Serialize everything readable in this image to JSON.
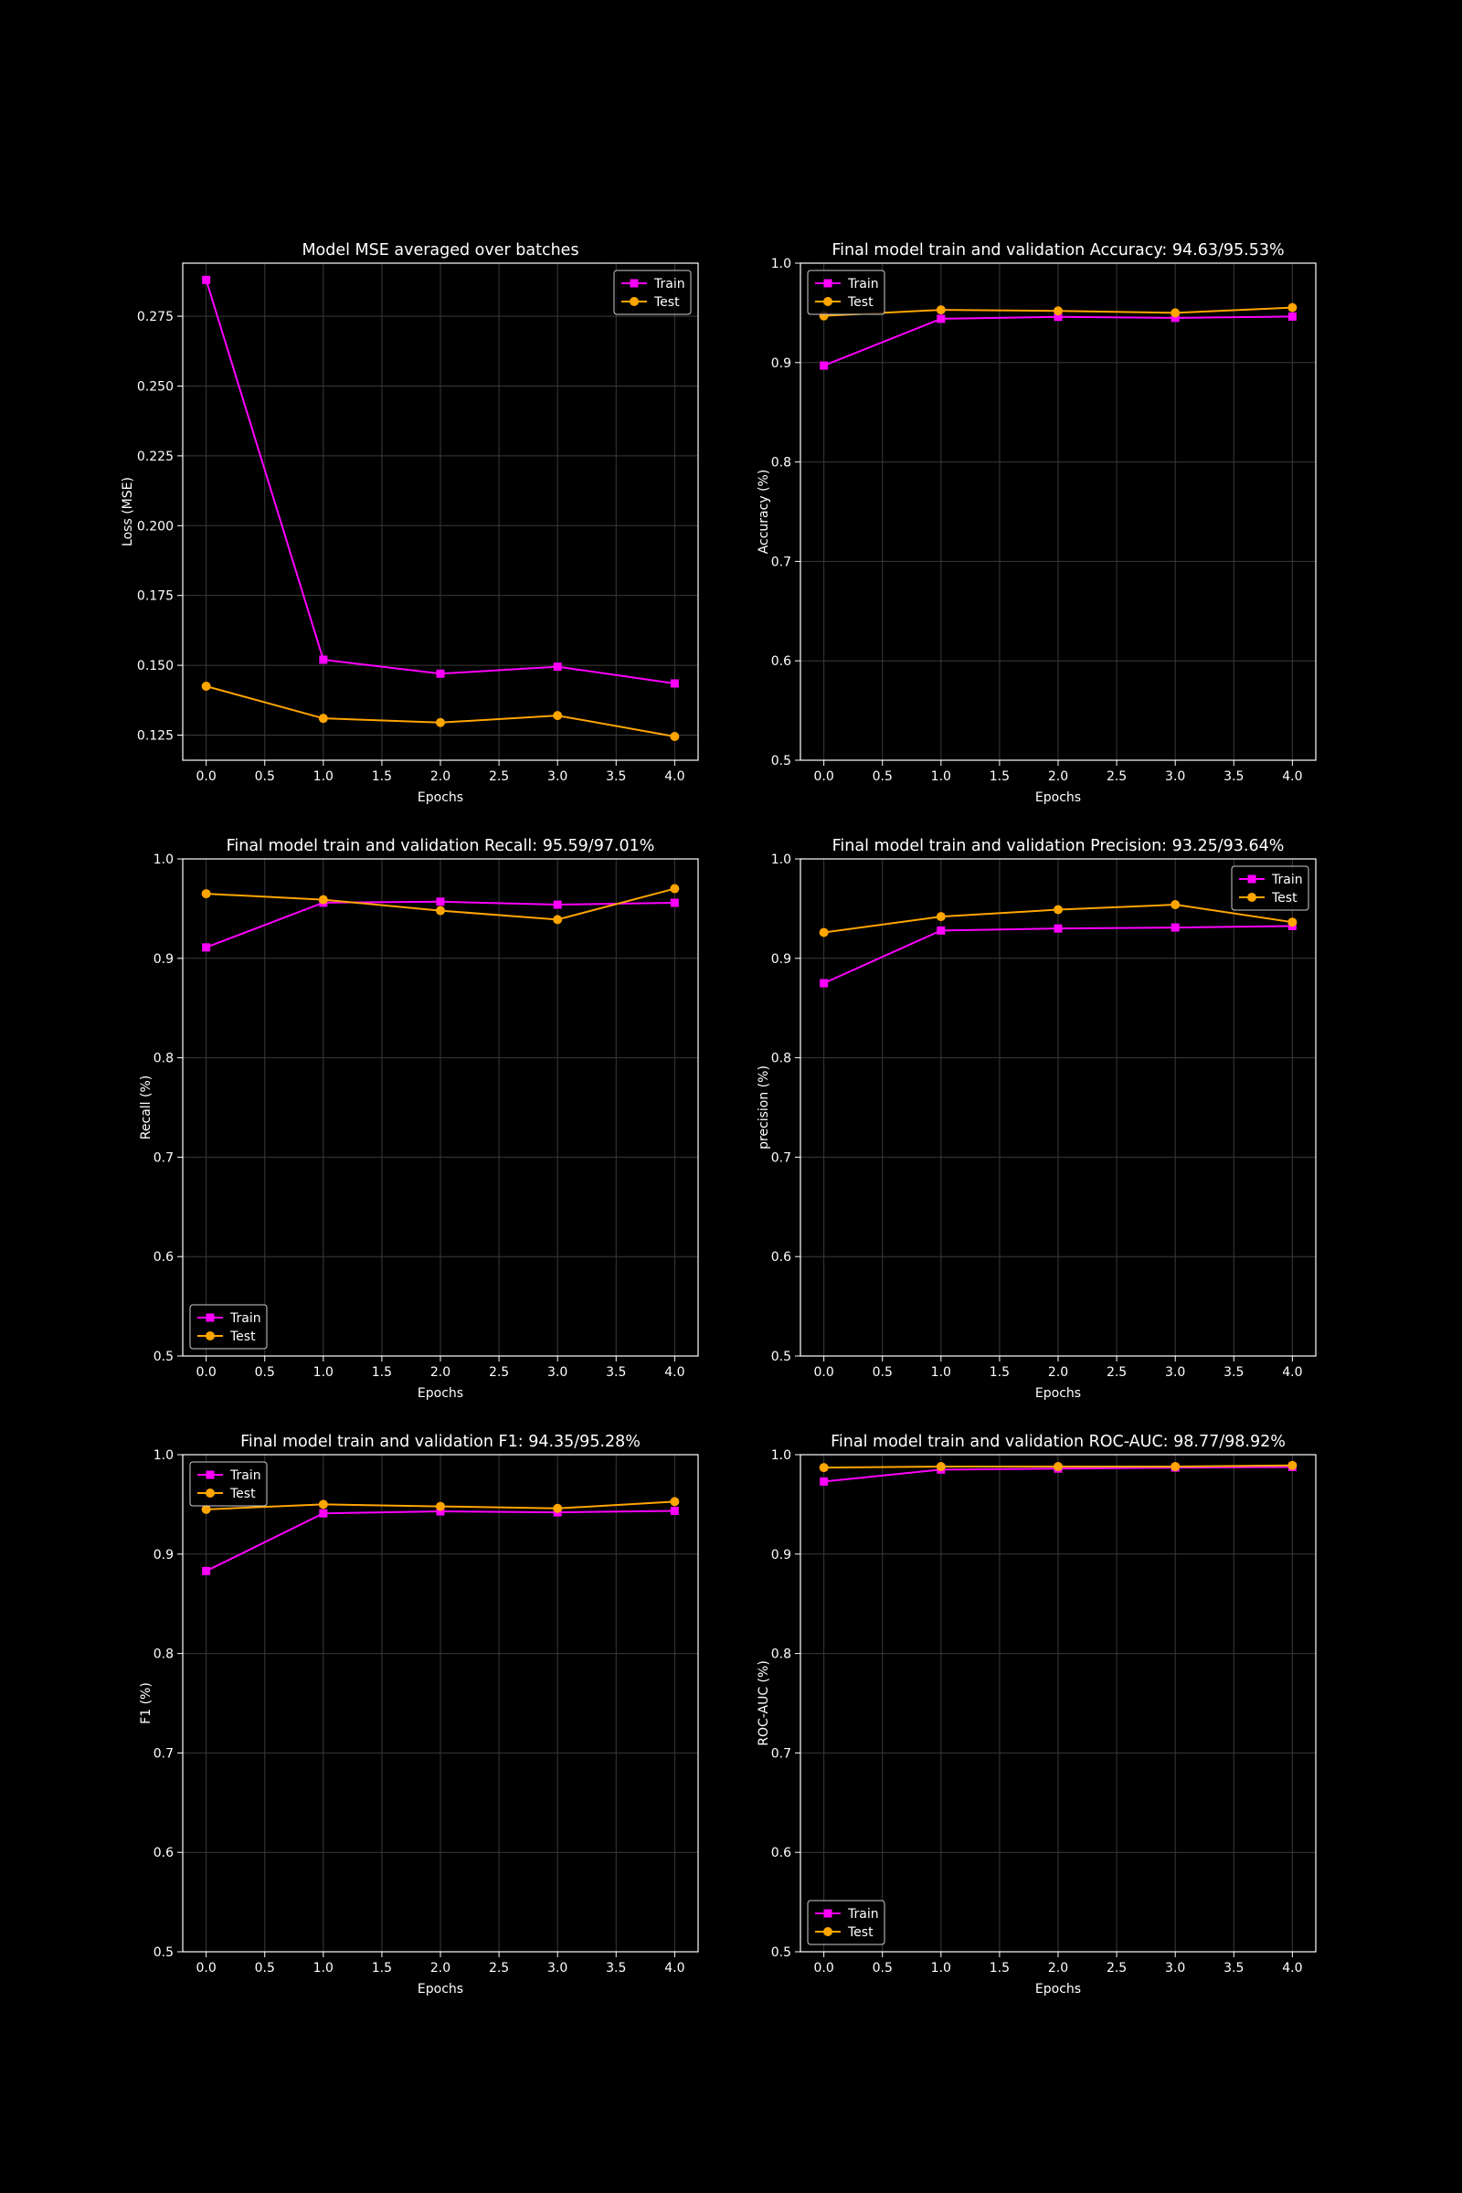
{
  "theme": {
    "background": "#000000",
    "grid": "#3a3a3a",
    "spine": "#ffffff",
    "text": "#ffffff",
    "train_color": "#ff00ff",
    "test_color": "#ffa500"
  },
  "chart_data": [
    {
      "type": "line",
      "title": "Model MSE averaged over batches",
      "xlabel": "Epochs",
      "ylabel": "Loss (MSE)",
      "x": [
        0,
        1,
        2,
        3,
        4
      ],
      "xlim": [
        -0.2,
        4.2
      ],
      "ylim": [
        0.116,
        0.294
      ],
      "xticks": [
        0.0,
        0.5,
        1.0,
        1.5,
        2.0,
        2.5,
        3.0,
        3.5,
        4.0
      ],
      "yticks": [
        0.125,
        0.15,
        0.175,
        0.2,
        0.225,
        0.25,
        0.275
      ],
      "ytick_decimals": 3,
      "grid": true,
      "legend": "upper right",
      "series": [
        {
          "name": "Train",
          "marker": "square",
          "values": [
            0.288,
            0.152,
            0.147,
            0.1495,
            0.1435
          ]
        },
        {
          "name": "Test",
          "marker": "circle",
          "values": [
            0.1425,
            0.131,
            0.1295,
            0.132,
            0.1245
          ]
        }
      ]
    },
    {
      "type": "line",
      "title": "Final model train and validation Accuracy: 94.63/95.53%",
      "xlabel": "Epochs",
      "ylabel": "Accuracy (%)",
      "x": [
        0,
        1,
        2,
        3,
        4
      ],
      "xlim": [
        -0.2,
        4.2
      ],
      "ylim": [
        0.5,
        1.0
      ],
      "xticks": [
        0.0,
        0.5,
        1.0,
        1.5,
        2.0,
        2.5,
        3.0,
        3.5,
        4.0
      ],
      "yticks": [
        0.5,
        0.6,
        0.7,
        0.8,
        0.9,
        1.0
      ],
      "ytick_decimals": 1,
      "grid": true,
      "legend": "upper left",
      "series": [
        {
          "name": "Train",
          "marker": "square",
          "values": [
            0.897,
            0.944,
            0.946,
            0.945,
            0.9463
          ]
        },
        {
          "name": "Test",
          "marker": "circle",
          "values": [
            0.947,
            0.953,
            0.952,
            0.95,
            0.9553
          ]
        }
      ]
    },
    {
      "type": "line",
      "title": "Final model train and validation Recall: 95.59/97.01%",
      "xlabel": "Epochs",
      "ylabel": "Recall (%)",
      "x": [
        0,
        1,
        2,
        3,
        4
      ],
      "xlim": [
        -0.2,
        4.2
      ],
      "ylim": [
        0.5,
        1.0
      ],
      "xticks": [
        0.0,
        0.5,
        1.0,
        1.5,
        2.0,
        2.5,
        3.0,
        3.5,
        4.0
      ],
      "yticks": [
        0.5,
        0.6,
        0.7,
        0.8,
        0.9,
        1.0
      ],
      "ytick_decimals": 1,
      "grid": true,
      "legend": "lower left",
      "series": [
        {
          "name": "Train",
          "marker": "square",
          "values": [
            0.911,
            0.956,
            0.957,
            0.954,
            0.9559
          ]
        },
        {
          "name": "Test",
          "marker": "circle",
          "values": [
            0.965,
            0.959,
            0.948,
            0.939,
            0.9701
          ]
        }
      ]
    },
    {
      "type": "line",
      "title": "Final model train and validation Precision: 93.25/93.64%",
      "xlabel": "Epochs",
      "ylabel": "precision (%)",
      "x": [
        0,
        1,
        2,
        3,
        4
      ],
      "xlim": [
        -0.2,
        4.2
      ],
      "ylim": [
        0.5,
        1.0
      ],
      "xticks": [
        0.0,
        0.5,
        1.0,
        1.5,
        2.0,
        2.5,
        3.0,
        3.5,
        4.0
      ],
      "yticks": [
        0.5,
        0.6,
        0.7,
        0.8,
        0.9,
        1.0
      ],
      "ytick_decimals": 1,
      "grid": true,
      "legend": "upper right",
      "series": [
        {
          "name": "Train",
          "marker": "square",
          "values": [
            0.875,
            0.928,
            0.93,
            0.931,
            0.9325
          ]
        },
        {
          "name": "Test",
          "marker": "circle",
          "values": [
            0.926,
            0.942,
            0.949,
            0.954,
            0.9364
          ]
        }
      ]
    },
    {
      "type": "line",
      "title": "Final model train and validation F1: 94.35/95.28%",
      "xlabel": "Epochs",
      "ylabel": "F1 (%)",
      "x": [
        0,
        1,
        2,
        3,
        4
      ],
      "xlim": [
        -0.2,
        4.2
      ],
      "ylim": [
        0.5,
        1.0
      ],
      "xticks": [
        0.0,
        0.5,
        1.0,
        1.5,
        2.0,
        2.5,
        3.0,
        3.5,
        4.0
      ],
      "yticks": [
        0.5,
        0.6,
        0.7,
        0.8,
        0.9,
        1.0
      ],
      "ytick_decimals": 1,
      "grid": true,
      "legend": "upper left",
      "series": [
        {
          "name": "Train",
          "marker": "square",
          "values": [
            0.883,
            0.941,
            0.943,
            0.942,
            0.9435
          ]
        },
        {
          "name": "Test",
          "marker": "circle",
          "values": [
            0.945,
            0.95,
            0.948,
            0.946,
            0.9528
          ]
        }
      ]
    },
    {
      "type": "line",
      "title": "Final model train and validation ROC-AUC: 98.77/98.92%",
      "xlabel": "Epochs",
      "ylabel": "ROC-AUC (%)",
      "x": [
        0,
        1,
        2,
        3,
        4
      ],
      "xlim": [
        -0.2,
        4.2
      ],
      "ylim": [
        0.5,
        1.0
      ],
      "xticks": [
        0.0,
        0.5,
        1.0,
        1.5,
        2.0,
        2.5,
        3.0,
        3.5,
        4.0
      ],
      "yticks": [
        0.5,
        0.6,
        0.7,
        0.8,
        0.9,
        1.0
      ],
      "ytick_decimals": 1,
      "grid": true,
      "legend": "lower left",
      "series": [
        {
          "name": "Train",
          "marker": "square",
          "values": [
            0.973,
            0.985,
            0.986,
            0.987,
            0.9877
          ]
        },
        {
          "name": "Test",
          "marker": "circle",
          "values": [
            0.987,
            0.988,
            0.988,
            0.988,
            0.9892
          ]
        }
      ]
    }
  ]
}
